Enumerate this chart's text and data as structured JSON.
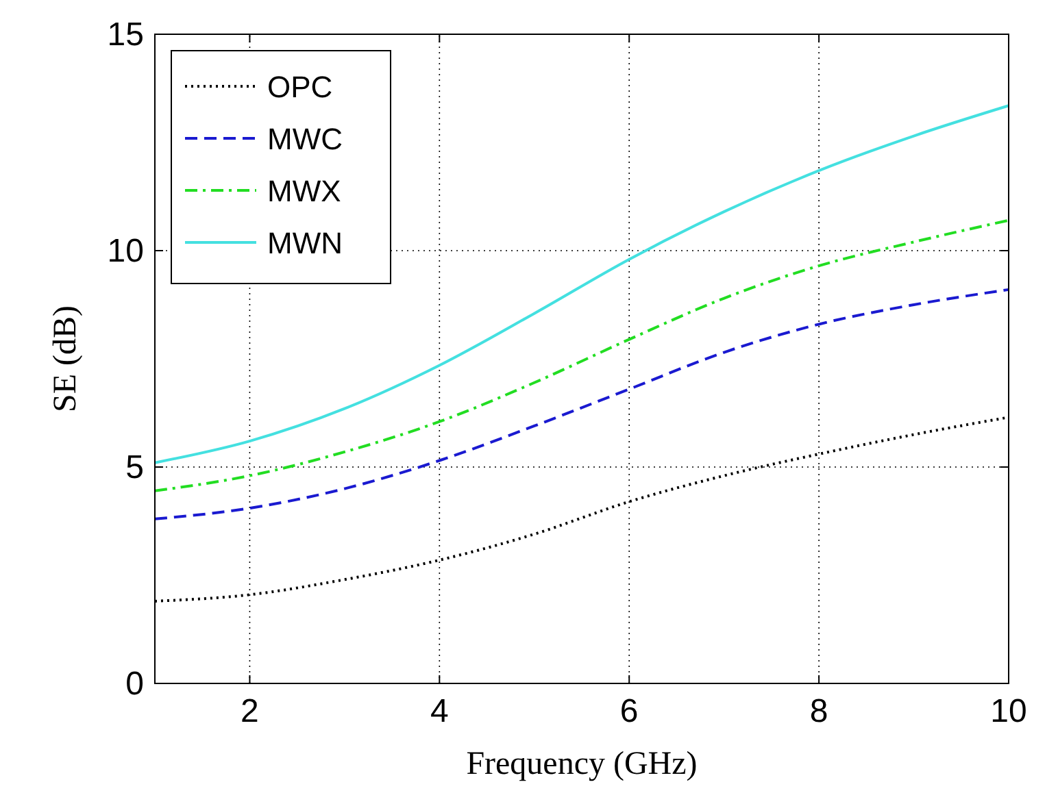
{
  "chart_data": {
    "type": "line",
    "xlabel": "Frequency (GHz)",
    "ylabel": "SE (dB)",
    "x": [
      1,
      2,
      3,
      4,
      5,
      6,
      7,
      8,
      9,
      10
    ],
    "series": [
      {
        "name": "OPC",
        "color": "#000000",
        "line_style": "dotted",
        "values": [
          1.9,
          2.05,
          2.4,
          2.85,
          3.45,
          4.2,
          4.8,
          5.3,
          5.75,
          6.15
        ]
      },
      {
        "name": "MWC",
        "color": "#1a1ad0",
        "line_style": "dashed",
        "values": [
          3.8,
          4.05,
          4.5,
          5.15,
          5.95,
          6.8,
          7.65,
          8.3,
          8.75,
          9.1
        ]
      },
      {
        "name": "MWX",
        "color": "#22dd22",
        "line_style": "dashdot",
        "values": [
          4.45,
          4.8,
          5.35,
          6.05,
          6.95,
          7.95,
          8.9,
          9.65,
          10.2,
          10.7
        ]
      },
      {
        "name": "MWN",
        "color": "#44e0e0",
        "line_style": "solid",
        "values": [
          5.1,
          5.6,
          6.35,
          7.35,
          8.55,
          9.8,
          10.9,
          11.85,
          12.65,
          13.35
        ]
      }
    ],
    "xlim": [
      1,
      10
    ],
    "xticks": [
      2,
      4,
      6,
      8,
      10
    ],
    "ylim": [
      0,
      15
    ],
    "yticks": [
      0,
      5,
      10,
      15
    ],
    "grid": true,
    "legend": "top left",
    "marker": "none"
  }
}
